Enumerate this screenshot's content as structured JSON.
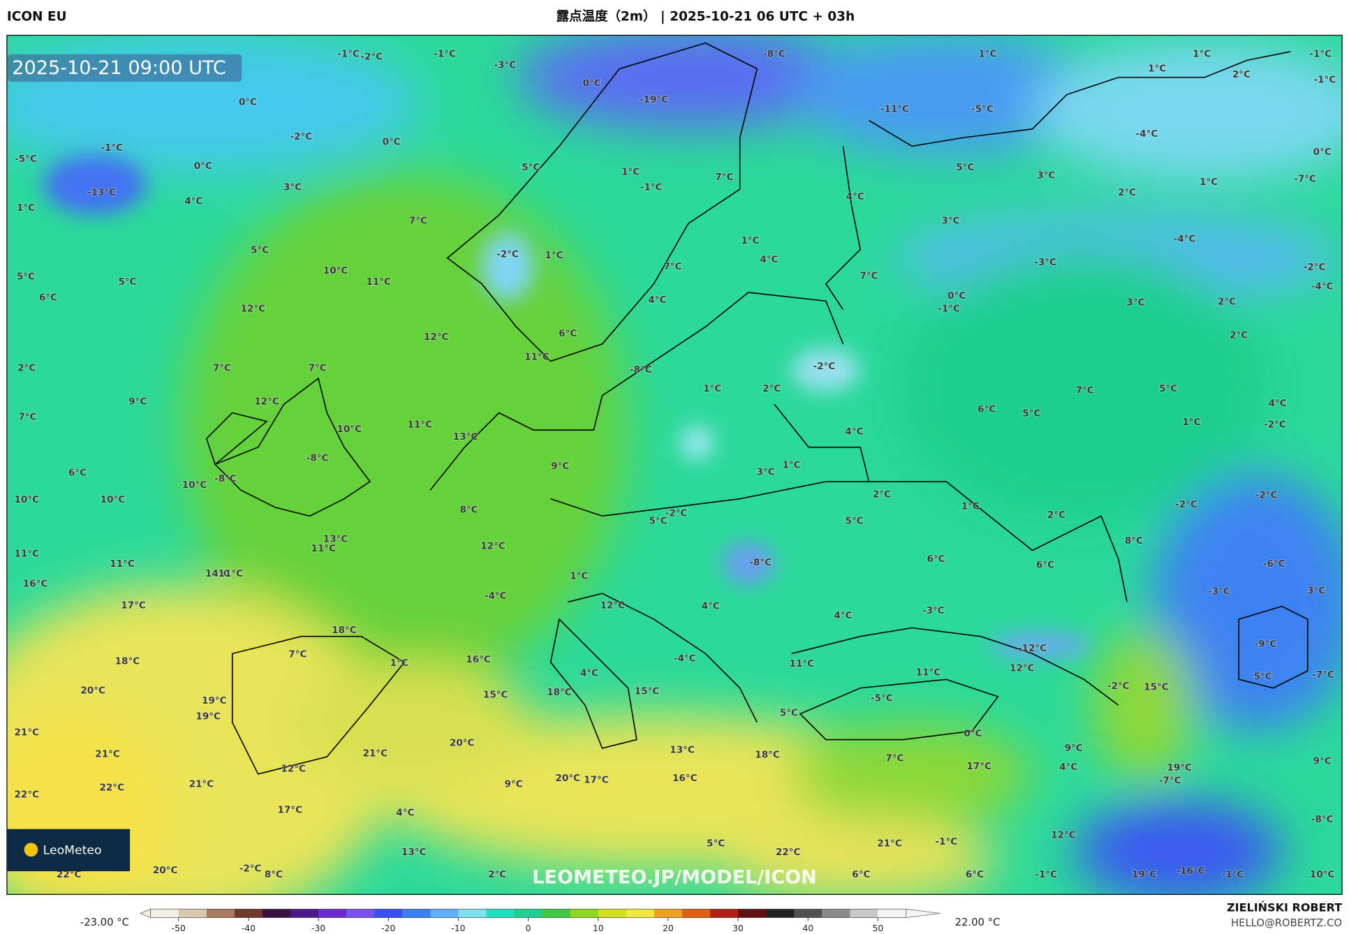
{
  "header": {
    "model": "ICON EU",
    "title": "露点温度（2m） | 2025-10-21 06 UTC + 03h"
  },
  "map": {
    "valid_time": "2025-10-21 09:00 UTC",
    "watermark": "LEOMETEO.JP/MODEL/ICON",
    "logo": "LeoMeteo",
    "labels": [
      "-1°C",
      "-2°C",
      "-1°C",
      "-3°C",
      "-8°C",
      "1°C",
      "1°C",
      "-1°C",
      "0°C",
      "-19°C",
      "-11°C",
      "-5°C",
      "1°C",
      "2°C",
      "-1°C",
      "0°C",
      "-2°C",
      "0°C",
      "-1°C",
      "-5°C",
      "-13°C",
      "0°C",
      "5°C",
      "1°C",
      "-1°C",
      "7°C",
      "5°C",
      "3°C",
      "-4°C",
      "0°C",
      "1°C",
      "-7°C",
      "3°C",
      "4°C",
      "1°C",
      "4°C",
      "2°C",
      "7°C",
      "3°C",
      "5°C",
      "-2°C",
      "1°C",
      "1°C",
      "4°C",
      "-4°C",
      "-3°C",
      "-2°C",
      "10°C",
      "11°C",
      "5°C",
      "5°C",
      "6°C",
      "7°C",
      "7°C",
      "0°C",
      "-1°C",
      "3°C",
      "2°C",
      "-4°C",
      "12°C",
      "4°C",
      "12°C",
      "6°C",
      "2°C",
      "11°C",
      "7°C",
      "7°C",
      "2°C",
      "-8°C",
      "-2°C",
      "1°C",
      "2°C",
      "7°C",
      "5°C",
      "9°C",
      "12°C",
      "6°C",
      "5°C",
      "4°C",
      "-2°C",
      "1°C",
      "7°C",
      "10°C",
      "11°C",
      "4°C",
      "13°C",
      "-8°C",
      "9°C",
      "1°C",
      "3°C",
      "6°C",
      "-8°C",
      "10°C",
      "2°C",
      "10°C",
      "10°C",
      "1°C",
      "-2°C",
      "-2°C",
      "8°C",
      "-2°C",
      "5°C",
      "5°C",
      "2°C",
      "8°C",
      "13°C",
      "11°C",
      "12°C",
      "11°C",
      "6°C",
      "-8°C",
      "6°C",
      "-6°C",
      "11°C",
      "14°C",
      "11°C",
      "1°C",
      "16°C",
      "-4°C",
      "-3°C",
      "3°C",
      "17°C",
      "12°C",
      "4°C",
      "-3°C",
      "4°C",
      "18°C",
      "-12°C",
      "-9°C",
      "7°C",
      "18°C",
      "1°C",
      "16°C",
      "-4°C",
      "11°C",
      "11°C",
      "12°C",
      "4°C",
      "5°C",
      "-7°C",
      "20°C",
      "15°C",
      "18°C",
      "15°C",
      "-2°C",
      "15°C",
      "-5°C",
      "19°C",
      "19°C",
      "5°C",
      "21°C",
      "0°C",
      "20°C",
      "9°C",
      "13°C",
      "21°C",
      "21°C",
      "7°C",
      "18°C",
      "4°C",
      "9°C",
      "17°C",
      "19°C",
      "12°C",
      "20°C",
      "17°C",
      "16°C",
      "-7°C",
      "9°C",
      "21°C",
      "22°C",
      "22°C",
      "17°C",
      "4°C",
      "-8°C",
      "12°C",
      "-1°C",
      "21°C",
      "5°C",
      "22°C",
      "13°C",
      "20°C",
      "-2°C",
      "8°C",
      "2°C",
      "6°C",
      "6°C",
      "-1°C",
      "19°C",
      "-16°C",
      "-1°C",
      "10°C",
      "22°C"
    ]
  },
  "colorbar": {
    "min_label": "-23.00 °C",
    "max_label": "22.00 °C",
    "lim": [
      -54,
      54
    ],
    "ticks": [
      -50,
      -40,
      -30,
      -20,
      -10,
      0,
      10,
      20,
      30,
      40,
      50
    ],
    "colors": [
      "#f4efe4",
      "#d8c8b0",
      "#a67a5a",
      "#6e3a2a",
      "#3a1040",
      "#4a1a8a",
      "#6a2ad0",
      "#7a50f0",
      "#3a50f0",
      "#3a80f5",
      "#60b0f8",
      "#80e0f0",
      "#20e0c0",
      "#20d090",
      "#40c840",
      "#90d820",
      "#d0e020",
      "#f0e840",
      "#f0a020",
      "#e06010",
      "#b02010",
      "#601010",
      "#202020",
      "#505050",
      "#8a8a8a",
      "#c8c8c8",
      "#f4f4f4"
    ]
  },
  "credits": {
    "author": "ZIELIŃSKI ROBERT",
    "email": "HELLO@ROBERTZ.CO"
  }
}
